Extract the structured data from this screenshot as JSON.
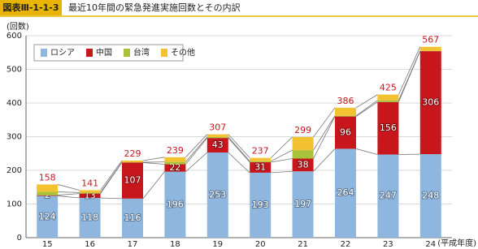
{
  "chart_data": {
    "type": "stacked-bar",
    "figure_label": "図表Ⅲ-1-1-3",
    "title": "最近10年間の緊急発進実施回数とその内訳",
    "y_unit": "(回数)",
    "x_unit": "(平成年度)",
    "categories": [
      "15",
      "16",
      "17",
      "18",
      "19",
      "20",
      "21",
      "22",
      "23",
      "24"
    ],
    "series": [
      {
        "name": "ロシア",
        "color": "#8fb6de",
        "labels": true,
        "values": [
          124,
          118,
          116,
          196,
          253,
          193,
          197,
          264,
          247,
          248
        ]
      },
      {
        "name": "中国",
        "color": "#c8161d",
        "labels": true,
        "values": [
          2,
          13,
          107,
          22,
          43,
          31,
          38,
          96,
          156,
          306
        ]
      },
      {
        "name": "台湾",
        "color": "#a8c23c",
        "labels": false,
        "values": [
          10,
          3,
          1,
          7,
          3,
          3,
          25,
          2,
          5,
          1
        ]
      },
      {
        "name": "その他",
        "color": "#f2c230",
        "labels": false,
        "values": [
          22,
          7,
          5,
          14,
          8,
          10,
          39,
          24,
          17,
          12
        ]
      }
    ],
    "totals": [
      158,
      141,
      229,
      239,
      307,
      237,
      299,
      386,
      425,
      567
    ],
    "ylim": [
      0,
      600
    ],
    "yticks": [
      0,
      100,
      200,
      300,
      400,
      500,
      600
    ],
    "grid": true
  }
}
